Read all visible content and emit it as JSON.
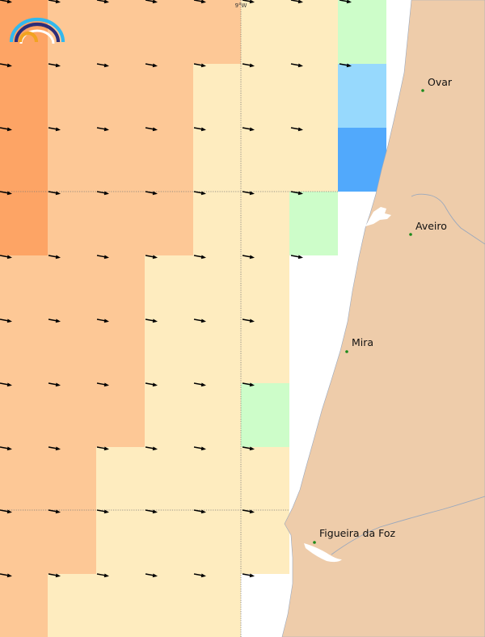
{
  "map": {
    "meridian_label": "9°W",
    "palette": {
      "orange_dark": "#fda465",
      "orange": "#fdc896",
      "cream": "#feecbf",
      "green": "#cdfdc9",
      "blue_light": "#97d9fd",
      "blue": "#51a9fc",
      "land": "#eeccaa",
      "coast": "#9aa8bd",
      "city_dot": "#1b8a1b",
      "arrow": "#000000"
    },
    "cells": [
      [
        "orange_dark",
        "orange",
        "orange",
        "orange",
        "orange",
        "cream",
        "cream",
        "green",
        "none"
      ],
      [
        "orange_dark",
        "orange",
        "orange",
        "orange",
        "cream",
        "cream",
        "cream",
        "blue_light",
        "none"
      ],
      [
        "orange_dark",
        "orange",
        "orange",
        "orange",
        "cream",
        "cream",
        "cream",
        "blue",
        "none"
      ],
      [
        "orange_dark",
        "orange",
        "orange",
        "orange",
        "cream",
        "cream",
        "green",
        "none",
        "none"
      ],
      [
        "orange",
        "orange",
        "orange",
        "cream",
        "cream",
        "cream",
        "none",
        "none",
        "none"
      ],
      [
        "orange",
        "orange",
        "orange",
        "cream",
        "cream",
        "cream",
        "none",
        "none",
        "none"
      ],
      [
        "orange",
        "orange",
        "orange",
        "cream",
        "cream",
        "green",
        "none",
        "none",
        "none"
      ],
      [
        "orange",
        "orange",
        "cream",
        "cream",
        "cream",
        "cream",
        "none",
        "none",
        "none"
      ],
      [
        "orange",
        "orange",
        "cream",
        "cream",
        "cream",
        "cream",
        "none",
        "none",
        "none"
      ],
      [
        "orange",
        "cream",
        "cream",
        "cream",
        "cream",
        "none",
        "none",
        "none",
        "none"
      ]
    ],
    "arrows_per_row": [
      8,
      8,
      7,
      7,
      7,
      6,
      6,
      6,
      6,
      6
    ],
    "cities": [
      {
        "name": "Ovar"
      },
      {
        "name": "Aveiro"
      },
      {
        "name": "Mira"
      },
      {
        "name": "Figueira da Foz"
      }
    ]
  }
}
